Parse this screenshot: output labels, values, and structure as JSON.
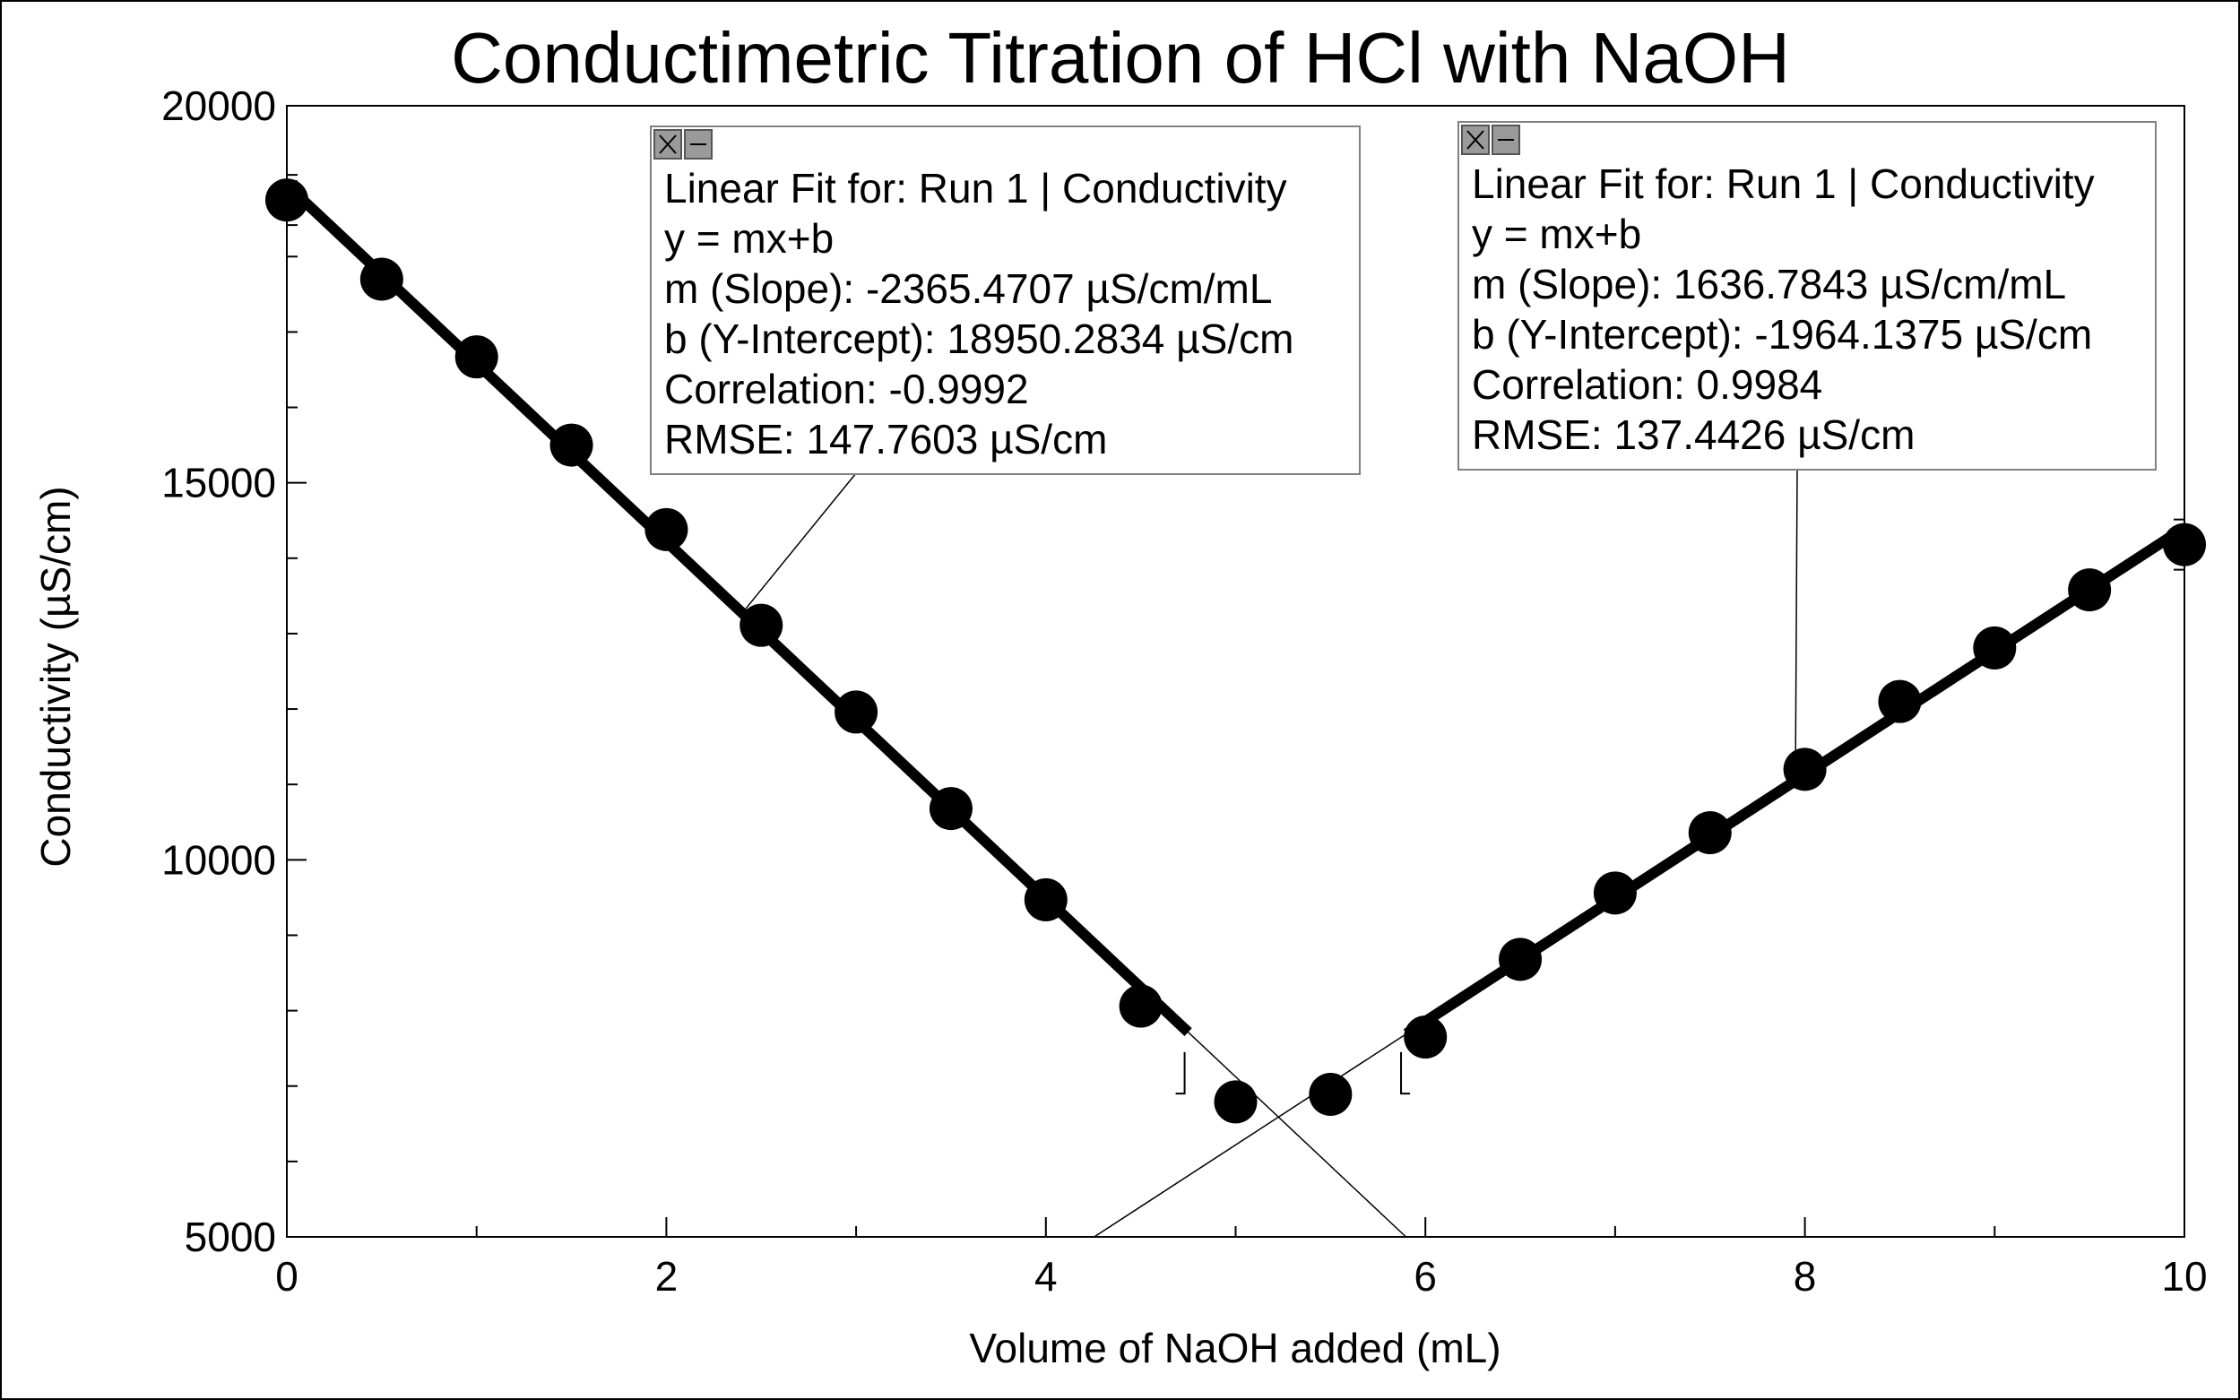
{
  "chart_data": {
    "type": "scatter",
    "title": "Conductimetric Titration of HCl with NaOH",
    "xlabel": "Volume of NaOH added (mL)",
    "ylabel": "Conductivity (µS/cm)",
    "xlim": [
      0,
      10
    ],
    "ylim": [
      5000,
      20000
    ],
    "xticks": [
      "0",
      "2",
      "4",
      "6",
      "8",
      "10"
    ],
    "yticks": [
      "5000",
      "10000",
      "15000",
      "20000"
    ],
    "grid": false,
    "series": [
      {
        "name": "Run 1 | Conductivity",
        "x": [
          0,
          0.5,
          1,
          1.5,
          2,
          2.5,
          3,
          3.5,
          4,
          4.5,
          5,
          5.5,
          6,
          6.5,
          7,
          7.5,
          8,
          8.5,
          9,
          9.5,
          10
        ],
        "y": [
          18750,
          17700,
          16670,
          15500,
          14380,
          13110,
          11960,
          10680,
          9470,
          8060,
          6790,
          6890,
          7650,
          8680,
          9560,
          10360,
          11200,
          12100,
          12810,
          13580,
          14180
        ]
      }
    ],
    "fits": [
      {
        "label_line1": "Linear Fit for: Run 1 | Conductivity",
        "label_line2": "y = mx+b",
        "label_line3": "m (Slope): -2365.4707 µS/cm/mL",
        "label_line4": "b (Y-Intercept): 18950.2834 µS/cm",
        "label_line5": "Correlation: -0.9992",
        "label_line6": "RMSE: 147.7603 µS/cm",
        "slope": -2365.4707,
        "intercept": 18950.2834,
        "range": [
          0,
          4.75
        ]
      },
      {
        "label_line1": "Linear Fit for: Run 1 | Conductivity",
        "label_line2": "y = mx+b",
        "label_line3": "m (Slope): 1636.7843 µS/cm/mL",
        "label_line4": "b (Y-Intercept): -1964.1375 µS/cm",
        "label_line5": "Correlation: 0.9984",
        "label_line6": "RMSE: 137.4426 µS/cm",
        "slope": 1636.7843,
        "intercept": -1964.1375,
        "range": [
          5.9,
          10
        ]
      }
    ]
  }
}
